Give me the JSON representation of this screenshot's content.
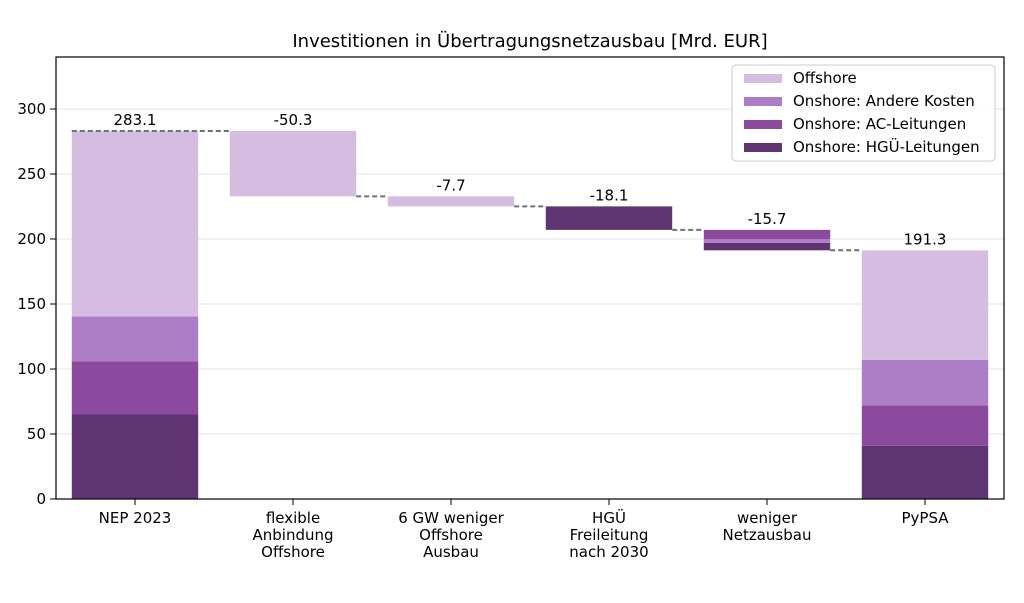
{
  "chart_data": {
    "type": "bar",
    "subtype": "stacked-waterfall",
    "title": "Investitionen in Übertragungsnetzausbau [Mrd. EUR]",
    "xlabel": "",
    "ylabel": "",
    "ylim": [
      0,
      340
    ],
    "yticks": [
      0,
      50,
      100,
      150,
      200,
      250,
      300
    ],
    "grid": "horizontal",
    "legend_position": "top-right",
    "categories": [
      [
        "NEP 2023"
      ],
      [
        "flexible",
        "Anbindung",
        "Offshore"
      ],
      [
        "6 GW weniger",
        "Offshore",
        "Ausbau"
      ],
      [
        "HGÜ",
        "Freileitung",
        "nach 2030"
      ],
      [
        "weniger",
        "Netzausbau"
      ],
      [
        "PyPSA"
      ]
    ],
    "series": [
      {
        "name": "Onshore: HGÜ-Leitungen",
        "color": "#5e3571"
      },
      {
        "name": "Onshore: AC-Leitungen",
        "color": "#8b4a9e"
      },
      {
        "name": "Onshore: Andere Kosten",
        "color": "#ad7ec6"
      },
      {
        "name": "Offshore",
        "color": "#d5bde2"
      }
    ],
    "legend_order": [
      "Offshore",
      "Onshore: Andere Kosten",
      "Onshore: AC-Leitungen",
      "Onshore: HGÜ-Leitungen"
    ],
    "bars": [
      {
        "segments": [
          {
            "series": "Onshore: HGÜ-Leitungen",
            "from": 0,
            "to": 65
          },
          {
            "series": "Onshore: AC-Leitungen",
            "from": 65,
            "to": 106
          },
          {
            "series": "Onshore: Andere Kosten",
            "from": 106,
            "to": 140.5
          },
          {
            "series": "Offshore",
            "from": 140.5,
            "to": 283.1
          }
        ],
        "label": "283.1",
        "label_value": 283.1
      },
      {
        "segments": [
          {
            "series": "Offshore",
            "from": 232.8,
            "to": 283.1
          }
        ],
        "label": "-50.3",
        "label_value": 283.1
      },
      {
        "segments": [
          {
            "series": "Offshore",
            "from": 225.1,
            "to": 232.8
          }
        ],
        "label": "-7.7",
        "label_value": 232.8
      },
      {
        "segments": [
          {
            "series": "Onshore: HGÜ-Leitungen",
            "from": 207.0,
            "to": 225.1
          }
        ],
        "label": "-18.1",
        "label_value": 225.1
      },
      {
        "segments": [
          {
            "series": "Onshore: HGÜ-Leitungen",
            "from": 191.3,
            "to": 197
          },
          {
            "series": "Onshore: Andere Kosten",
            "from": 197,
            "to": 200
          },
          {
            "series": "Onshore: AC-Leitungen",
            "from": 200,
            "to": 207.0
          }
        ],
        "label": "-15.7",
        "label_value": 207.0
      },
      {
        "segments": [
          {
            "series": "Onshore: HGÜ-Leitungen",
            "from": 0,
            "to": 41
          },
          {
            "series": "Onshore: AC-Leitungen",
            "from": 41,
            "to": 72
          },
          {
            "series": "Onshore: Andere Kosten",
            "from": 72,
            "to": 107
          },
          {
            "series": "Offshore",
            "from": 107,
            "to": 191.3
          }
        ],
        "label": "191.3",
        "label_value": 191.3
      }
    ],
    "connectors": [
      283.1,
      232.8,
      225.1,
      207.0,
      191.3
    ]
  }
}
